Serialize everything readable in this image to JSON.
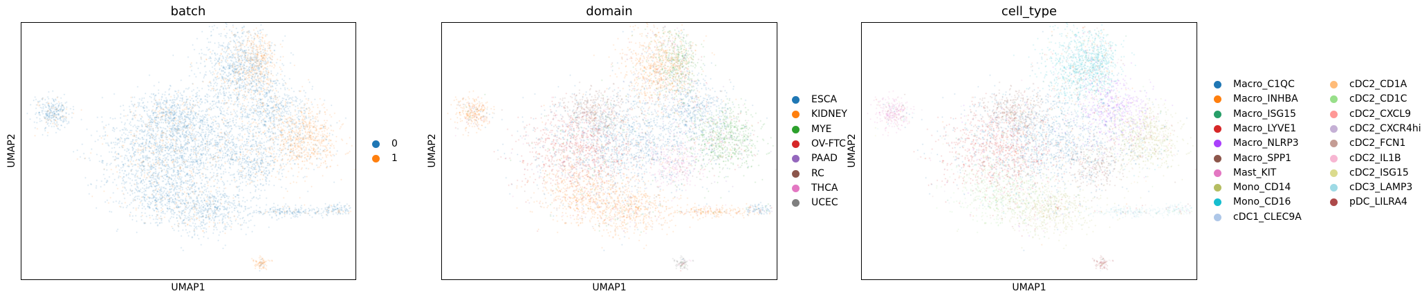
{
  "chart_data": [
    {
      "type": "scatter",
      "title": "batch",
      "xlabel": "UMAP1",
      "ylabel": "UMAP2",
      "legend": [
        {
          "label": "0",
          "color": "#1f77b4"
        },
        {
          "label": "1",
          "color": "#ff7f0e"
        }
      ]
    },
    {
      "type": "scatter",
      "title": "domain",
      "xlabel": "UMAP1",
      "ylabel": "UMAP2",
      "legend": [
        {
          "label": "ESCA",
          "color": "#1f77b4"
        },
        {
          "label": "KIDNEY",
          "color": "#ff7f0e"
        },
        {
          "label": "MYE",
          "color": "#2ca02c"
        },
        {
          "label": "OV-FTC",
          "color": "#d62728"
        },
        {
          "label": "PAAD",
          "color": "#9467bd"
        },
        {
          "label": "RC",
          "color": "#8c564b"
        },
        {
          "label": "THCA",
          "color": "#e377c2"
        },
        {
          "label": "UCEC",
          "color": "#7f7f7f"
        }
      ]
    },
    {
      "type": "scatter",
      "title": "cell_type",
      "xlabel": "UMAP1",
      "ylabel": "UMAP2",
      "legend": [
        {
          "label": "Macro_C1QC",
          "color": "#1f77b4"
        },
        {
          "label": "Macro_INHBA",
          "color": "#ff7f0e"
        },
        {
          "label": "Macro_ISG15",
          "color": "#279e68"
        },
        {
          "label": "Macro_LYVE1",
          "color": "#d62728"
        },
        {
          "label": "Macro_NLRP3",
          "color": "#aa40fc"
        },
        {
          "label": "Macro_SPP1",
          "color": "#8c564b"
        },
        {
          "label": "Mast_KIT",
          "color": "#e377c2"
        },
        {
          "label": "Mono_CD14",
          "color": "#b5bd61"
        },
        {
          "label": "Mono_CD16",
          "color": "#17becf"
        },
        {
          "label": "cDC1_CLEC9A",
          "color": "#aec7e8"
        },
        {
          "label": "cDC2_CD1A",
          "color": "#ffbb78"
        },
        {
          "label": "cDC2_CD1C",
          "color": "#98df8a"
        },
        {
          "label": "cDC2_CXCL9",
          "color": "#ff9896"
        },
        {
          "label": "cDC2_CXCR4hi",
          "color": "#c5b0d5"
        },
        {
          "label": "cDC2_FCN1",
          "color": "#c49c94"
        },
        {
          "label": "cDC2_IL1B",
          "color": "#f7b6d2"
        },
        {
          "label": "cDC2_ISG15",
          "color": "#dbdb8d"
        },
        {
          "label": "cDC3_LAMP3",
          "color": "#9edae5"
        },
        {
          "label": "pDC_LILRA4",
          "color": "#ad494a"
        }
      ]
    }
  ]
}
